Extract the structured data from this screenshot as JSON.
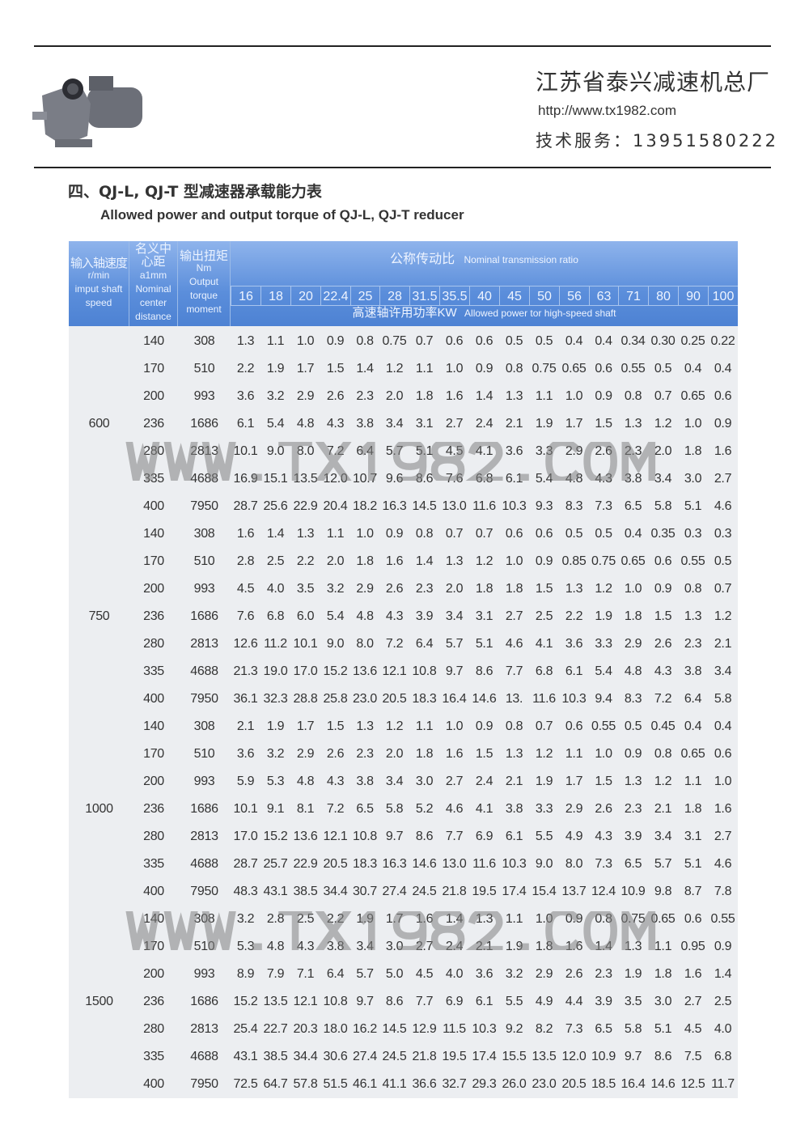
{
  "header": {
    "company": "江苏省泰兴减速机总厂",
    "url": "http://www.tx1982.com",
    "service": "技术服务：13951580222"
  },
  "title": "四、QJ-L, QJ-T 型减速器承载能力表",
  "subtitle": "Allowed power and output torque of QJ-L, QJ-T reducer",
  "watermark": "WWW.TX1982.COM",
  "table": {
    "col_speed": [
      "输入轴速度",
      "r/min",
      "imput shaft",
      "speed"
    ],
    "col_center": [
      "名义中",
      "心距",
      "a1mm",
      "Nominal",
      "center",
      "distance"
    ],
    "col_torque": [
      "输出扭矩",
      "Nm",
      "Output",
      "torque",
      "moment"
    ],
    "ratio_title_cn": "公称传动比",
    "ratio_title_en": "Nominal transmission ratio",
    "ratios": [
      "16",
      "18",
      "20",
      "22.4",
      "25",
      "28",
      "31.5",
      "35.5",
      "40",
      "45",
      "50",
      "56",
      "63",
      "71",
      "80",
      "90",
      "100"
    ],
    "power_title_cn": "高速轴许用功率KW",
    "power_title_en": "Allowed power tor high-speed shaft",
    "groups": [
      {
        "speed": "600",
        "rows": [
          {
            "a": "140",
            "t": "308",
            "p": [
              "1.3",
              "1.1",
              "1.0",
              "0.9",
              "0.8",
              "0.75",
              "0.7",
              "0.6",
              "0.6",
              "0.5",
              "0.5",
              "0.4",
              "0.4",
              "0.34",
              "0.30",
              "0.25",
              "0.22"
            ]
          },
          {
            "a": "170",
            "t": "510",
            "p": [
              "2.2",
              "1.9",
              "1.7",
              "1.5",
              "1.4",
              "1.2",
              "1.1",
              "1.0",
              "0.9",
              "0.8",
              "0.75",
              "0.65",
              "0.6",
              "0.55",
              "0.5",
              "0.4",
              "0.4"
            ]
          },
          {
            "a": "200",
            "t": "993",
            "p": [
              "3.6",
              "3.2",
              "2.9",
              "2.6",
              "2.3",
              "2.0",
              "1.8",
              "1.6",
              "1.4",
              "1.3",
              "1.1",
              "1.0",
              "0.9",
              "0.8",
              "0.7",
              "0.65",
              "0.6"
            ]
          },
          {
            "a": "236",
            "t": "1686",
            "p": [
              "6.1",
              "5.4",
              "4.8",
              "4.3",
              "3.8",
              "3.4",
              "3.1",
              "2.7",
              "2.4",
              "2.1",
              "1.9",
              "1.7",
              "1.5",
              "1.3",
              "1.2",
              "1.0",
              "0.9"
            ]
          },
          {
            "a": "280",
            "t": "2813",
            "p": [
              "10.1",
              "9.0",
              "8.0",
              "7.2",
              "6.4",
              "5.7",
              "5.1",
              "4.5",
              "4.1",
              "3.6",
              "3.3",
              "2.9",
              "2.6",
              "2.3",
              "2.0",
              "1.8",
              "1.6"
            ]
          },
          {
            "a": "335",
            "t": "4688",
            "p": [
              "16.9",
              "15.1",
              "13.5",
              "12.0",
              "10.7",
              "9.6",
              "8.6",
              "7.6",
              "6.8",
              "6.1",
              "5.4",
              "4.8",
              "4.3",
              "3.8",
              "3.4",
              "3.0",
              "2.7"
            ]
          },
          {
            "a": "400",
            "t": "7950",
            "p": [
              "28.7",
              "25.6",
              "22.9",
              "20.4",
              "18.2",
              "16.3",
              "14.5",
              "13.0",
              "11.6",
              "10.3",
              "9.3",
              "8.3",
              "7.3",
              "6.5",
              "5.8",
              "5.1",
              "4.6"
            ]
          }
        ]
      },
      {
        "speed": "750",
        "rows": [
          {
            "a": "140",
            "t": "308",
            "p": [
              "1.6",
              "1.4",
              "1.3",
              "1.1",
              "1.0",
              "0.9",
              "0.8",
              "0.7",
              "0.7",
              "0.6",
              "0.6",
              "0.5",
              "0.5",
              "0.4",
              "0.35",
              "0.3",
              "0.3"
            ]
          },
          {
            "a": "170",
            "t": "510",
            "p": [
              "2.8",
              "2.5",
              "2.2",
              "2.0",
              "1.8",
              "1.6",
              "1.4",
              "1.3",
              "1.2",
              "1.0",
              "0.9",
              "0.85",
              "0.75",
              "0.65",
              "0.6",
              "0.55",
              "0.5"
            ]
          },
          {
            "a": "200",
            "t": "993",
            "p": [
              "4.5",
              "4.0",
              "3.5",
              "3.2",
              "2.9",
              "2.6",
              "2.3",
              "2.0",
              "1.8",
              "1.8",
              "1.5",
              "1.3",
              "1.2",
              "1.0",
              "0.9",
              "0.8",
              "0.7"
            ]
          },
          {
            "a": "236",
            "t": "1686",
            "p": [
              "7.6",
              "6.8",
              "6.0",
              "5.4",
              "4.8",
              "4.3",
              "3.9",
              "3.4",
              "3.1",
              "2.7",
              "2.5",
              "2.2",
              "1.9",
              "1.8",
              "1.5",
              "1.3",
              "1.2"
            ]
          },
          {
            "a": "280",
            "t": "2813",
            "p": [
              "12.6",
              "11.2",
              "10.1",
              "9.0",
              "8.0",
              "7.2",
              "6.4",
              "5.7",
              "5.1",
              "4.6",
              "4.1",
              "3.6",
              "3.3",
              "2.9",
              "2.6",
              "2.3",
              "2.1"
            ]
          },
          {
            "a": "335",
            "t": "4688",
            "p": [
              "21.3",
              "19.0",
              "17.0",
              "15.2",
              "13.6",
              "12.1",
              "10.8",
              "9.7",
              "8.6",
              "7.7",
              "6.8",
              "6.1",
              "5.4",
              "4.8",
              "4.3",
              "3.8",
              "3.4"
            ]
          },
          {
            "a": "400",
            "t": "7950",
            "p": [
              "36.1",
              "32.3",
              "28.8",
              "25.8",
              "23.0",
              "20.5",
              "18.3",
              "16.4",
              "14.6",
              "13.",
              "11.6",
              "10.3",
              "9.4",
              "8.3",
              "7.2",
              "6.4",
              "5.8"
            ]
          }
        ]
      },
      {
        "speed": "1000",
        "rows": [
          {
            "a": "140",
            "t": "308",
            "p": [
              "2.1",
              "1.9",
              "1.7",
              "1.5",
              "1.3",
              "1.2",
              "1.1",
              "1.0",
              "0.9",
              "0.8",
              "0.7",
              "0.6",
              "0.55",
              "0.5",
              "0.45",
              "0.4",
              "0.4"
            ]
          },
          {
            "a": "170",
            "t": "510",
            "p": [
              "3.6",
              "3.2",
              "2.9",
              "2.6",
              "2.3",
              "2.0",
              "1.8",
              "1.6",
              "1.5",
              "1.3",
              "1.2",
              "1.1",
              "1.0",
              "0.9",
              "0.8",
              "0.65",
              "0.6"
            ]
          },
          {
            "a": "200",
            "t": "993",
            "p": [
              "5.9",
              "5.3",
              "4.8",
              "4.3",
              "3.8",
              "3.4",
              "3.0",
              "2.7",
              "2.4",
              "2.1",
              "1.9",
              "1.7",
              "1.5",
              "1.3",
              "1.2",
              "1.1",
              "1.0"
            ]
          },
          {
            "a": "236",
            "t": "1686",
            "p": [
              "10.1",
              "9.1",
              "8.1",
              "7.2",
              "6.5",
              "5.8",
              "5.2",
              "4.6",
              "4.1",
              "3.8",
              "3.3",
              "2.9",
              "2.6",
              "2.3",
              "2.1",
              "1.8",
              "1.6"
            ]
          },
          {
            "a": "280",
            "t": "2813",
            "p": [
              "17.0",
              "15.2",
              "13.6",
              "12.1",
              "10.8",
              "9.7",
              "8.6",
              "7.7",
              "6.9",
              "6.1",
              "5.5",
              "4.9",
              "4.3",
              "3.9",
              "3.4",
              "3.1",
              "2.7"
            ]
          },
          {
            "a": "335",
            "t": "4688",
            "p": [
              "28.7",
              "25.7",
              "22.9",
              "20.5",
              "18.3",
              "16.3",
              "14.6",
              "13.0",
              "11.6",
              "10.3",
              "9.0",
              "8.0",
              "7.3",
              "6.5",
              "5.7",
              "5.1",
              "4.6"
            ]
          },
          {
            "a": "400",
            "t": "7950",
            "p": [
              "48.3",
              "43.1",
              "38.5",
              "34.4",
              "30.7",
              "27.4",
              "24.5",
              "21.8",
              "19.5",
              "17.4",
              "15.4",
              "13.7",
              "12.4",
              "10.9",
              "9.8",
              "8.7",
              "7.8"
            ]
          }
        ]
      },
      {
        "speed": "1500",
        "rows": [
          {
            "a": "140",
            "t": "308",
            "p": [
              "3.2",
              "2.8",
              "2.5",
              "2.2",
              "1.9",
              "1.7",
              "1.6",
              "1.4",
              "1.3",
              "1.1",
              "1.0",
              "0.9",
              "0.8",
              "0.75",
              "0.65",
              "0.6",
              "0.55"
            ]
          },
          {
            "a": "170",
            "t": "510",
            "p": [
              "5.3",
              "4.8",
              "4.3",
              "3.8",
              "3.4",
              "3.0",
              "2.7",
              "2.4",
              "2.1",
              "1.9",
              "1.8",
              "1.6",
              "1.4",
              "1.3",
              "1.1",
              "0.95",
              "0.9"
            ]
          },
          {
            "a": "200",
            "t": "993",
            "p": [
              "8.9",
              "7.9",
              "7.1",
              "6.4",
              "5.7",
              "5.0",
              "4.5",
              "4.0",
              "3.6",
              "3.2",
              "2.9",
              "2.6",
              "2.3",
              "1.9",
              "1.8",
              "1.6",
              "1.4"
            ]
          },
          {
            "a": "236",
            "t": "1686",
            "p": [
              "15.2",
              "13.5",
              "12.1",
              "10.8",
              "9.7",
              "8.6",
              "7.7",
              "6.9",
              "6.1",
              "5.5",
              "4.9",
              "4.4",
              "3.9",
              "3.5",
              "3.0",
              "2.7",
              "2.5"
            ]
          },
          {
            "a": "280",
            "t": "2813",
            "p": [
              "25.4",
              "22.7",
              "20.3",
              "18.0",
              "16.2",
              "14.5",
              "12.9",
              "11.5",
              "10.3",
              "9.2",
              "8.2",
              "7.3",
              "6.5",
              "5.8",
              "5.1",
              "4.5",
              "4.0"
            ]
          },
          {
            "a": "335",
            "t": "4688",
            "p": [
              "43.1",
              "38.5",
              "34.4",
              "30.6",
              "27.4",
              "24.5",
              "21.8",
              "19.5",
              "17.4",
              "15.5",
              "13.5",
              "12.0",
              "10.9",
              "9.7",
              "8.6",
              "7.5",
              "6.8"
            ]
          },
          {
            "a": "400",
            "t": "7950",
            "p": [
              "72.5",
              "64.7",
              "57.8",
              "51.5",
              "46.1",
              "41.1",
              "36.6",
              "32.7",
              "29.3",
              "26.0",
              "23.0",
              "20.5",
              "18.5",
              "16.4",
              "14.6",
              "12.5",
              "11.7"
            ]
          }
        ]
      }
    ]
  },
  "colors": {
    "header_blue": "#5b8edb",
    "table_bg": "#eceef1",
    "text": "#333333"
  }
}
